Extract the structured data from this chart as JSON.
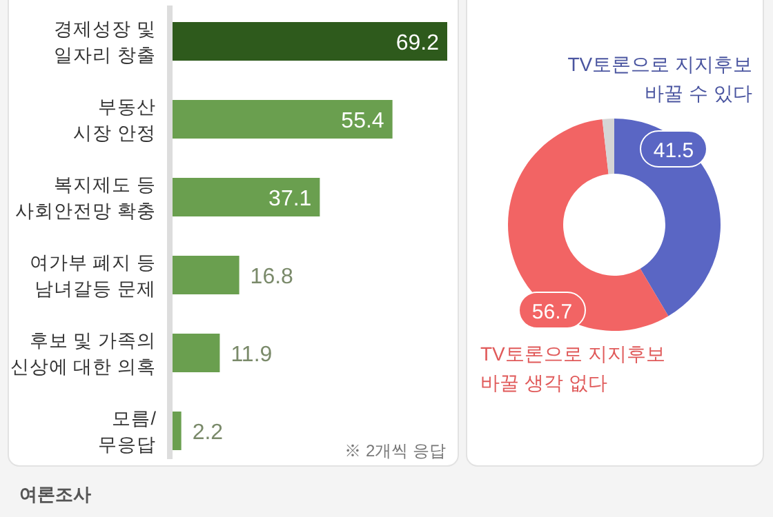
{
  "chart_data": [
    {
      "type": "bar",
      "orientation": "horizontal",
      "categories": [
        "경제성장 및\n일자리 창출",
        "부동산\n시장 안정",
        "복지제도 등\n사회안전망 확충",
        "여가부 폐지 등\n남녀갈등 문제",
        "후보 및  가족의\n신상에 대한 의혹",
        "모름/\n무응답"
      ],
      "values": [
        69.2,
        55.4,
        37.1,
        16.8,
        11.9,
        2.2
      ],
      "colors": [
        "#2e5a1c",
        "#6a9f4f",
        "#6a9f4f",
        "#6a9f4f",
        "#6a9f4f",
        "#6a9f4f"
      ],
      "data_labels": true,
      "annotations": [
        "※ 2개씩 응답",
        "여론조사"
      ]
    },
    {
      "type": "donut",
      "categories": [
        "TV토론으로 지지후보\n바꿀 수 있다",
        "TV토론으로 지지후보\n바꿀 생각 없다",
        null
      ],
      "values": [
        41.5,
        56.7,
        1.8
      ],
      "colors": [
        "#5a66c4",
        "#f26464",
        "#d5d5d5"
      ],
      "value_labels": [
        "41.5",
        "56.7",
        null
      ]
    }
  ]
}
